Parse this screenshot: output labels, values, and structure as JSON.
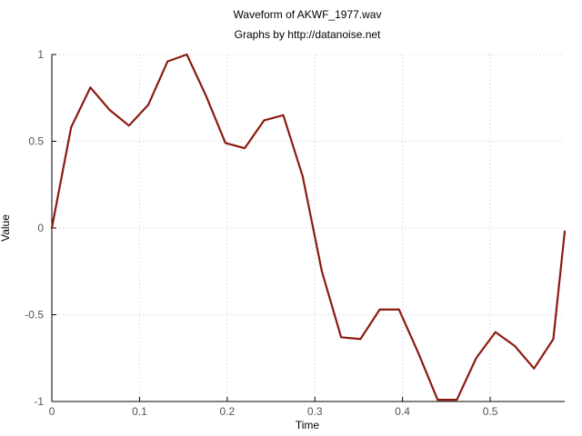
{
  "chart_data": {
    "type": "line",
    "title": "Waveform of AKWF_1977.wav",
    "subtitle": "Graphs by http://datanoise.net",
    "xlabel": "Time",
    "ylabel": "Value",
    "xlim": [
      0,
      0.585
    ],
    "ylim": [
      -1,
      1
    ],
    "x_ticks": [
      0,
      0.1,
      0.2,
      0.3,
      0.4,
      0.5
    ],
    "x_tick_labels": [
      "0",
      "0.1",
      "0.2",
      "0.3",
      "0.4",
      "0.5"
    ],
    "y_ticks": [
      -1,
      -0.5,
      0,
      0.5,
      1
    ],
    "y_tick_labels": [
      "-1",
      "-0.5",
      "0",
      "0.5",
      "1"
    ],
    "grid": true,
    "line_color": "#8b1a10",
    "x": [
      0,
      0.022,
      0.044,
      0.066,
      0.088,
      0.11,
      0.132,
      0.154,
      0.176,
      0.198,
      0.22,
      0.242,
      0.264,
      0.286,
      0.308,
      0.33,
      0.352,
      0.374,
      0.396,
      0.418,
      0.44,
      0.462,
      0.484,
      0.506,
      0.528,
      0.55,
      0.572,
      0.585
    ],
    "values": [
      0.0,
      0.58,
      0.81,
      0.68,
      0.59,
      0.71,
      0.96,
      1.0,
      0.76,
      0.49,
      0.46,
      0.62,
      0.65,
      0.3,
      -0.25,
      -0.63,
      -0.64,
      -0.47,
      -0.47,
      -0.72,
      -0.99,
      -0.99,
      -0.75,
      -0.6,
      -0.68,
      -0.81,
      -0.64,
      -0.02
    ]
  }
}
